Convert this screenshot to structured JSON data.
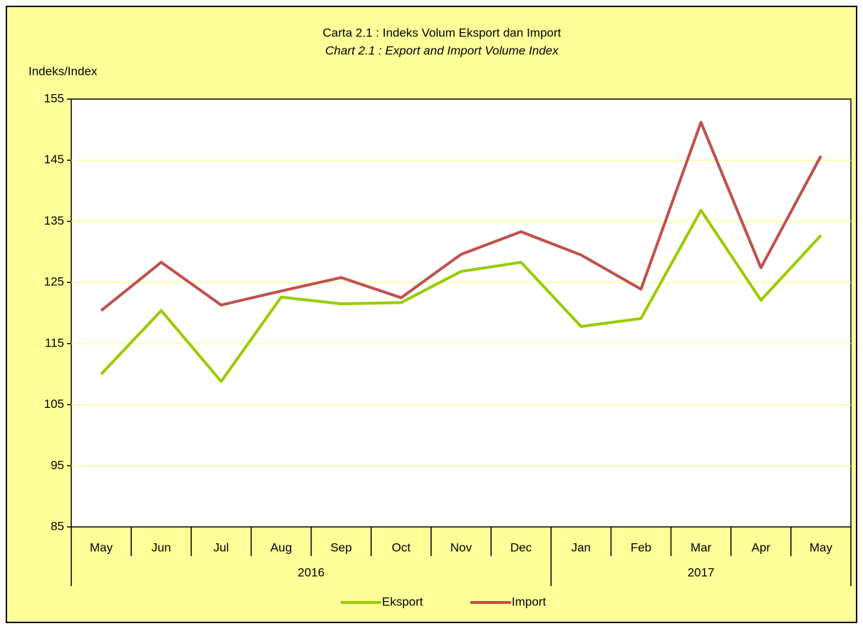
{
  "chart_data": {
    "type": "line",
    "title": "Carta 2.1 : Indeks Volum Eksport dan Import",
    "subtitle": "Chart 2.1 : Export and Import Volume Index",
    "y_label": "Indeks/Index",
    "categories": [
      "May",
      "Jun",
      "Jul",
      "Aug",
      "Sep",
      "Oct",
      "Nov",
      "Dec",
      "Jan",
      "Feb",
      "Mar",
      "Apr",
      "May"
    ],
    "x_group": [
      "2016",
      "2016",
      "2016",
      "2016",
      "2016",
      "2016",
      "2016",
      "2016",
      "2017",
      "2017",
      "2017",
      "2017",
      "2017"
    ],
    "series": [
      {
        "name": "Eksport",
        "color": "#99CC00",
        "values": [
          110.0,
          120.4,
          108.8,
          122.6,
          121.5,
          121.7,
          126.8,
          128.3,
          117.8,
          119.1,
          136.8,
          122.1,
          132.7
        ]
      },
      {
        "name": "Import",
        "color": "#C0504D",
        "values": [
          120.4,
          128.3,
          121.3,
          123.6,
          125.8,
          122.5,
          129.6,
          133.3,
          129.5,
          123.9,
          151.2,
          127.4,
          145.7
        ]
      }
    ],
    "ylim": [
      85,
      155
    ],
    "yticks": [
      85,
      95,
      105,
      115,
      125,
      135,
      145,
      155
    ],
    "grid": true,
    "legend": "bottom"
  }
}
